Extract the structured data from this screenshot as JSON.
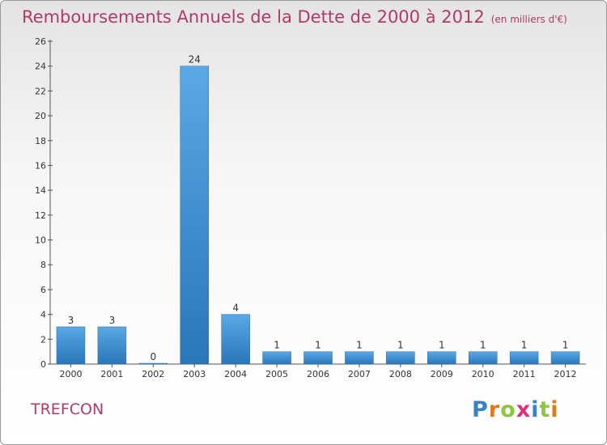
{
  "header": {
    "title": "Remboursements Annuels de la Dette de 2000 à 2012",
    "unit": "(en milliers d'€)"
  },
  "footer": {
    "commune": "TREFCON",
    "logo": "Proxiti",
    "logo_colors": [
      "#3b82c4",
      "#e07a1f",
      "#8dc63f",
      "#e0307a",
      "#3b82c4",
      "#8dc63f",
      "#e07a1f"
    ]
  },
  "chart_data": {
    "type": "bar",
    "title": "Remboursements Annuels de la Dette de 2000 à 2012",
    "xlabel": "",
    "ylabel": "",
    "categories": [
      "2000",
      "2001",
      "2002",
      "2003",
      "2004",
      "2005",
      "2006",
      "2007",
      "2008",
      "2009",
      "2010",
      "2011",
      "2012"
    ],
    "values": [
      3,
      3,
      0,
      24,
      4,
      1,
      1,
      1,
      1,
      1,
      1,
      1,
      1
    ],
    "data_labels": [
      "3",
      "3",
      "0",
      "24",
      "4",
      "1",
      "1",
      "1",
      "1",
      "1",
      "1",
      "1",
      "1"
    ],
    "ylim": [
      0,
      26
    ],
    "yticks": [
      0,
      2,
      4,
      6,
      8,
      10,
      12,
      14,
      16,
      18,
      20,
      22,
      24,
      26
    ],
    "ytick_labels": [
      "0",
      "2",
      "4",
      "6",
      "8",
      "10",
      "12",
      "14",
      "16",
      "18",
      "20",
      "22",
      "24",
      "26"
    ],
    "grid": false,
    "bar_color_top": "#5aa8e6",
    "bar_color_bottom": "#2a76b8"
  }
}
